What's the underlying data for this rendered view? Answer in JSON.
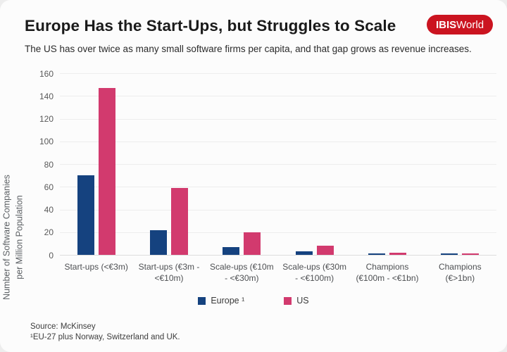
{
  "header": {
    "title": "Europe Has the Start-Ups, but Struggles to Scale",
    "logo": {
      "bold": "IBIS",
      "regular": "World",
      "background": "#cb1420"
    }
  },
  "subtitle": "The US has over twice as many small software firms per capita, and that gap grows as revenue increases.",
  "chart_data": {
    "type": "bar",
    "categories": [
      "Start-ups (<€3m)",
      "Start-ups (€3m - <€10m)",
      "Scale-ups (€10m - <€30m)",
      "Scale-ups (€30m - <€100m)",
      "Champions (€100m - <€1bn)",
      "Champions (€>1bn)"
    ],
    "series": [
      {
        "name": "Europe ¹",
        "color": "#15427f",
        "values": [
          70,
          22,
          7,
          3,
          1,
          1
        ]
      },
      {
        "name": "US",
        "color": "#d23a6e",
        "values": [
          147,
          59,
          20,
          8,
          2,
          1
        ]
      }
    ],
    "title": "Europe Has the Start-Ups, but Struggles to Scale",
    "xlabel": "",
    "ylabel_lines": [
      "Number of Software Companies",
      "per Million Population"
    ],
    "ylim": [
      0,
      160
    ],
    "yticks": [
      0,
      20,
      40,
      60,
      80,
      100,
      120,
      140,
      160
    ],
    "grid": true,
    "legend_position": "bottom"
  },
  "footer": {
    "source": "Source: McKinsey",
    "footnote": "¹EU-27 plus Norway, Switzerland and UK."
  }
}
